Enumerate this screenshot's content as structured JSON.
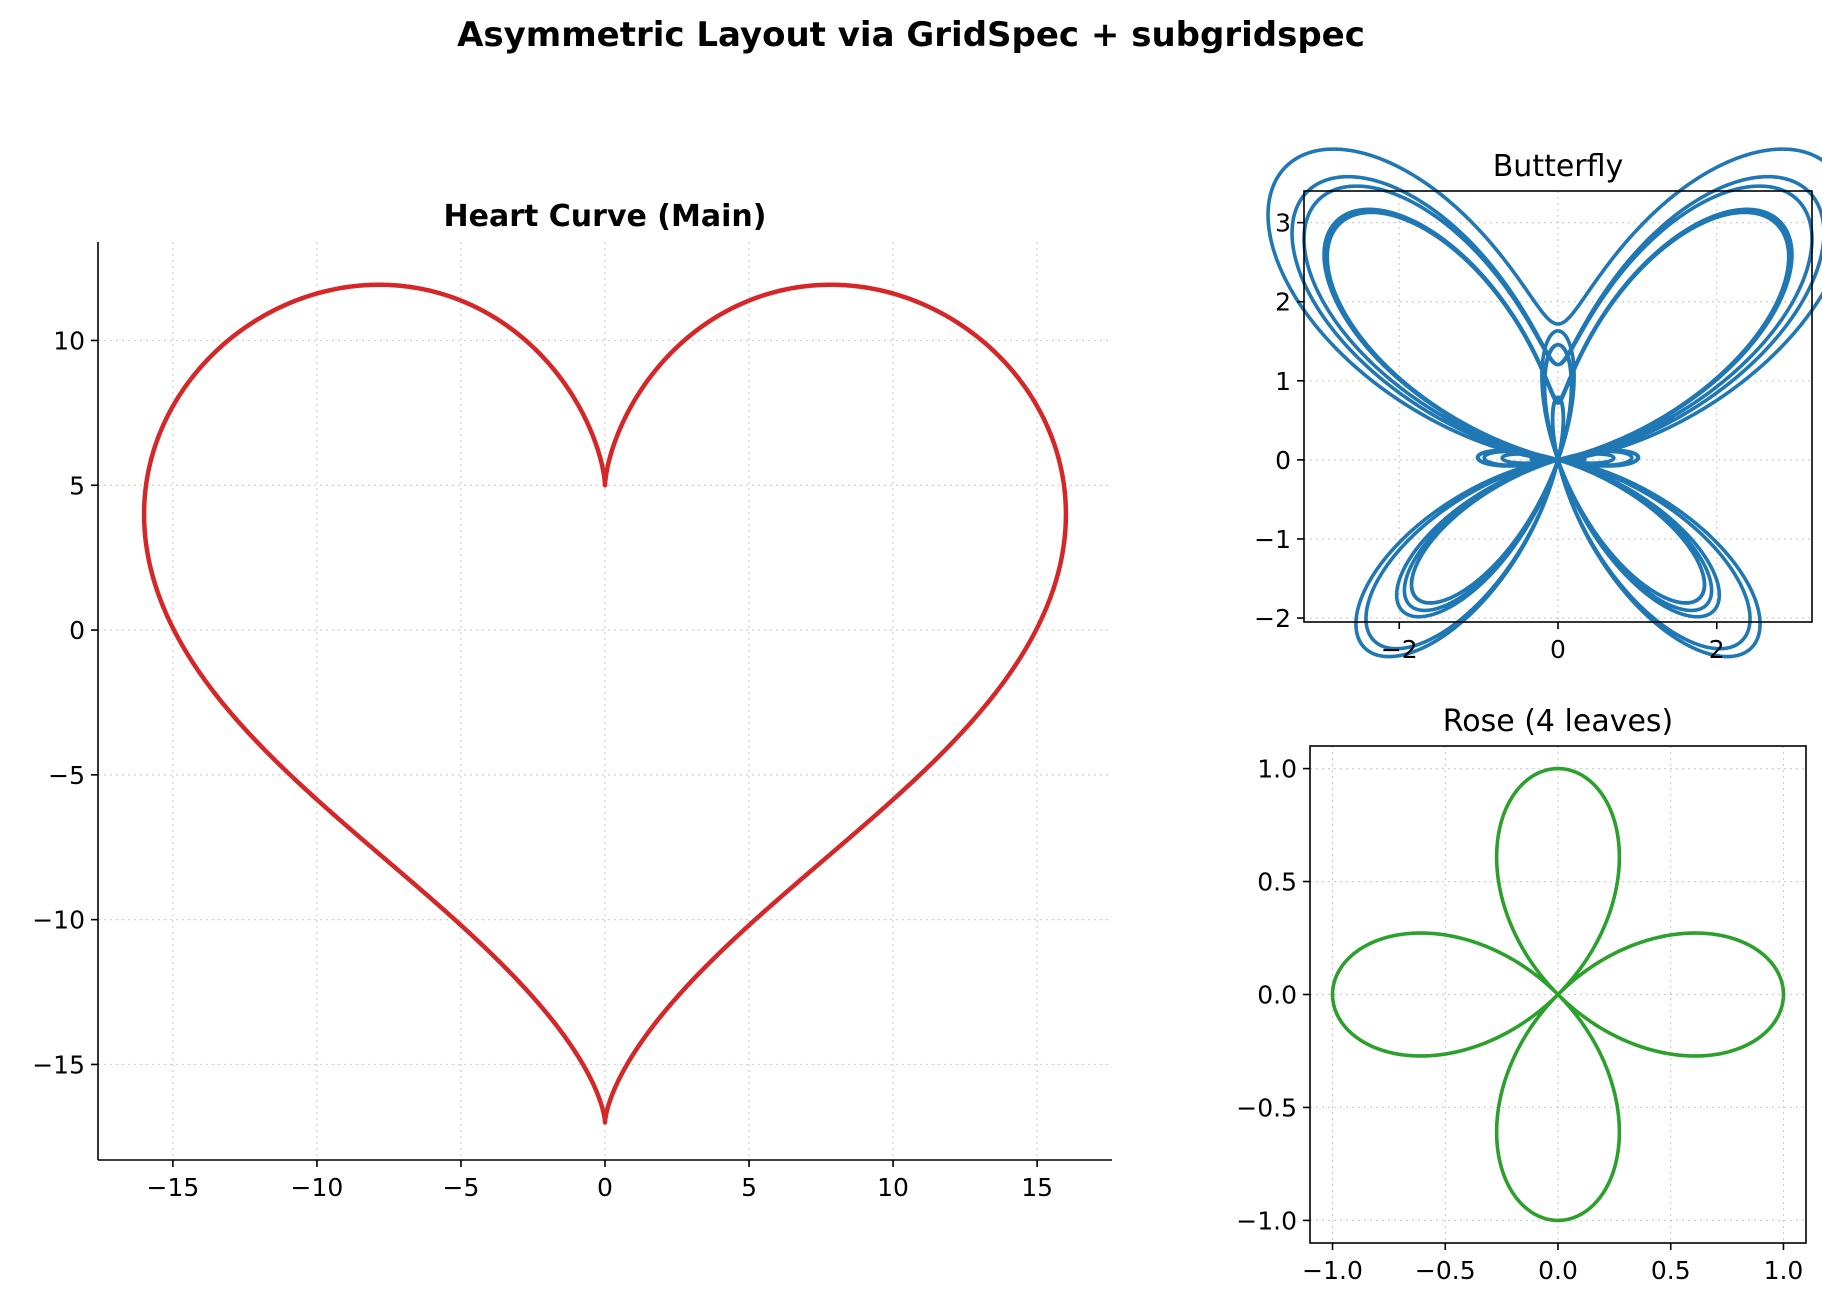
{
  "suptitle": "Asymmetric Layout via GridSpec + subgridspec",
  "chart_data": [
    {
      "id": "heart",
      "type": "line",
      "title": "Heart Curve (Main)",
      "title_bold": true,
      "xlabel": "",
      "ylabel": "",
      "xlim": [
        -17.6,
        17.6
      ],
      "ylim": [
        -18.3,
        13.4
      ],
      "xticks": [
        -15,
        -10,
        -5,
        0,
        5,
        10,
        15
      ],
      "xtick_labels": [
        "−15",
        "−10",
        "−5",
        "0",
        "5",
        "10",
        "15"
      ],
      "yticks": [
        -15,
        -10,
        -5,
        0,
        5,
        10
      ],
      "ytick_labels": [
        "−15",
        "−10",
        "−5",
        "0",
        "5",
        "10"
      ],
      "grid": true,
      "spines": "left-bottom",
      "series": [
        {
          "color": "#d62728",
          "equation": "x = 16 sin³ t, y = 13 cos t − 5 cos 2t − 2 cos 3t − cos 4t",
          "x_range": [
            -16,
            16
          ],
          "y_range": [
            -17,
            11.9
          ]
        }
      ]
    },
    {
      "id": "butterfly",
      "type": "line",
      "title": "Butterfly",
      "title_bold": false,
      "xlabel": "",
      "ylabel": "",
      "xlim": [
        -3.2,
        3.2
      ],
      "ylim": [
        -2.05,
        3.4
      ],
      "xticks": [
        -2,
        0,
        2
      ],
      "xtick_labels": [
        "−2",
        "0",
        "2"
      ],
      "yticks": [
        -2,
        -1,
        0,
        1,
        2,
        3
      ],
      "ytick_labels": [
        "−2",
        "−1",
        "0",
        "1",
        "2",
        "3"
      ],
      "grid": true,
      "spines": "all",
      "series": [
        {
          "color": "#1f77b4",
          "equation": "r = e^{cos t} − 2 cos 4t + sin⁵(t/12), x = r sin t, y = r cos t",
          "x_range": [
            -2.9,
            2.9
          ],
          "y_range": [
            -1.8,
            3.1
          ]
        }
      ]
    },
    {
      "id": "rose",
      "type": "line",
      "title": "Rose (4 leaves)",
      "title_bold": false,
      "xlabel": "",
      "ylabel": "",
      "xlim": [
        -1.1,
        1.1
      ],
      "ylim": [
        -1.1,
        1.1
      ],
      "xticks": [
        -1.0,
        -0.5,
        0.0,
        0.5,
        1.0
      ],
      "xtick_labels": [
        "−1.0",
        "−0.5",
        "0.0",
        "0.5",
        "1.0"
      ],
      "yticks": [
        -1.0,
        -0.5,
        0.0,
        0.5,
        1.0
      ],
      "ytick_labels": [
        "−1.0",
        "−0.5",
        "0.0",
        "0.5",
        "1.0"
      ],
      "grid": true,
      "spines": "all",
      "series": [
        {
          "color": "#2ca02c",
          "equation": "r = cos 2t, x = r cos t, y = r sin t",
          "x_range": [
            -1,
            1
          ],
          "y_range": [
            -1,
            1
          ]
        }
      ]
    }
  ]
}
